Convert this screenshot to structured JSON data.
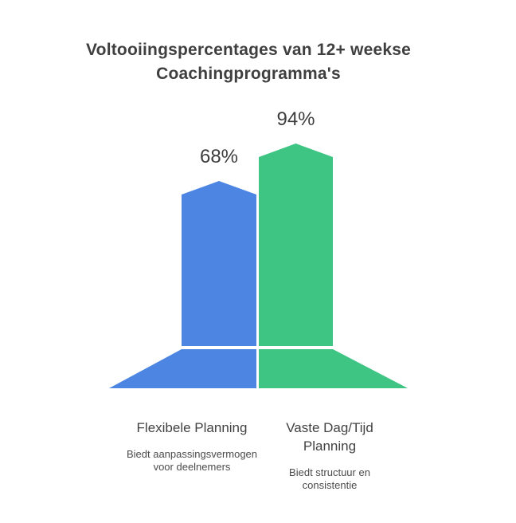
{
  "title": "Voltooiingspercentages van 12+ weekse Coachingprogramma's",
  "chart_data": {
    "type": "bar",
    "title": "Voltooiingspercentages van 12+ weekse Coachingprogramma's",
    "categories": [
      "Flexibele Planning",
      "Vaste Dag/Tijd Planning"
    ],
    "values": [
      68,
      94
    ],
    "value_labels": [
      "68%",
      "94%"
    ],
    "category_descriptions": [
      "Biedt aanpassingsvermogen voor deelnemers",
      "Biedt structuur en consistentie"
    ],
    "colors": [
      "#4d86e2",
      "#3ec483"
    ],
    "ylim": [
      0,
      100
    ],
    "xlabel": "",
    "ylabel": "",
    "legend_position": "none",
    "grid": false,
    "bar_style": "peaked-column-with-flared-base",
    "axes_visible": false
  }
}
